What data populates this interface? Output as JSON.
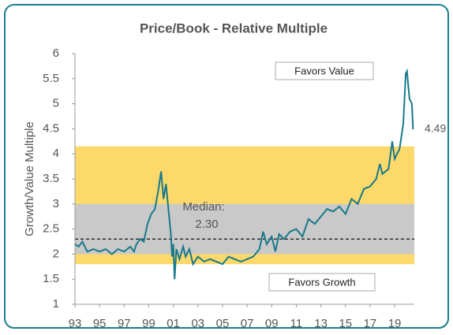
{
  "chart_data": {
    "type": "line",
    "title": "Price/Book - Relative Multiple",
    "y_label": "Growth/Value Multiple",
    "color": "#17798a",
    "x": [
      1993.0,
      1993.3,
      1993.6,
      1994.0,
      1994.5,
      1995.0,
      1995.5,
      1996.0,
      1996.5,
      1997.0,
      1997.5,
      1997.8,
      1998.0,
      1998.3,
      1998.6,
      1998.9,
      1999.2,
      1999.5,
      1999.8,
      2000.0,
      2000.2,
      2000.4,
      2000.6,
      2000.8,
      2000.9,
      2001.0,
      2001.1,
      2001.25,
      2001.5,
      2001.8,
      2002.0,
      2002.3,
      2002.6,
      2003.0,
      2003.5,
      2004.0,
      2004.5,
      2005.0,
      2005.5,
      2006.0,
      2006.5,
      2007.0,
      2007.5,
      2008.0,
      2008.3,
      2008.6,
      2009.0,
      2009.3,
      2009.6,
      2010.0,
      2010.5,
      2011.0,
      2011.5,
      2012.0,
      2012.5,
      2013.0,
      2013.5,
      2014.0,
      2014.5,
      2015.0,
      2015.5,
      2016.0,
      2016.5,
      2017.0,
      2017.5,
      2017.8,
      2018.0,
      2018.5,
      2018.8,
      2019.0,
      2019.4,
      2019.7,
      2019.9,
      2020.0,
      2020.2,
      2020.4,
      2020.5
    ],
    "values": [
      2.2,
      2.15,
      2.25,
      2.05,
      2.1,
      2.05,
      2.1,
      2.0,
      2.1,
      2.05,
      2.15,
      2.05,
      2.2,
      2.3,
      2.25,
      2.6,
      2.8,
      2.9,
      3.3,
      3.65,
      3.1,
      3.4,
      2.9,
      2.4,
      1.95,
      2.2,
      1.5,
      2.1,
      1.9,
      2.15,
      1.95,
      2.1,
      1.8,
      1.95,
      1.85,
      1.9,
      1.85,
      1.8,
      1.95,
      1.9,
      1.85,
      1.9,
      1.95,
      2.1,
      2.45,
      2.2,
      2.35,
      2.05,
      2.4,
      2.3,
      2.45,
      2.5,
      2.35,
      2.7,
      2.6,
      2.75,
      2.9,
      2.85,
      2.95,
      2.8,
      3.1,
      3.0,
      3.3,
      3.35,
      3.5,
      3.8,
      3.6,
      3.7,
      4.25,
      3.9,
      4.1,
      4.6,
      5.6,
      5.65,
      5.1,
      5.0,
      4.49
    ],
    "last_label": "4.49",
    "xlim": [
      1993,
      2020.6
    ],
    "xticks": [
      {
        "value": 1993,
        "label": "93"
      },
      {
        "value": 1995,
        "label": "95"
      },
      {
        "value": 1997,
        "label": "97"
      },
      {
        "value": 1999,
        "label": "99"
      },
      {
        "value": 2001,
        "label": "01"
      },
      {
        "value": 2003,
        "label": "03"
      },
      {
        "value": 2005,
        "label": "05"
      },
      {
        "value": 2007,
        "label": "07"
      },
      {
        "value": 2009,
        "label": "09"
      },
      {
        "value": 2011,
        "label": "11"
      },
      {
        "value": 2013,
        "label": "13"
      },
      {
        "value": 2015,
        "label": "15"
      },
      {
        "value": 2017,
        "label": "17"
      },
      {
        "value": 2019,
        "label": "19"
      }
    ],
    "ylim": [
      1,
      6
    ],
    "yticks": [
      1,
      1.5,
      2,
      2.5,
      3,
      3.5,
      4,
      4.5,
      5,
      5.5,
      6
    ],
    "bands": [
      {
        "from": 1.8,
        "to": 4.15,
        "color": "#fdd96b"
      },
      {
        "from": 2,
        "to": 3,
        "color": "#c9c9c9"
      }
    ],
    "median": {
      "label": "Median:",
      "value": 2.3,
      "value_label": "2.30"
    },
    "annotations": [
      "Favors Value",
      "Favors Growth"
    ]
  }
}
